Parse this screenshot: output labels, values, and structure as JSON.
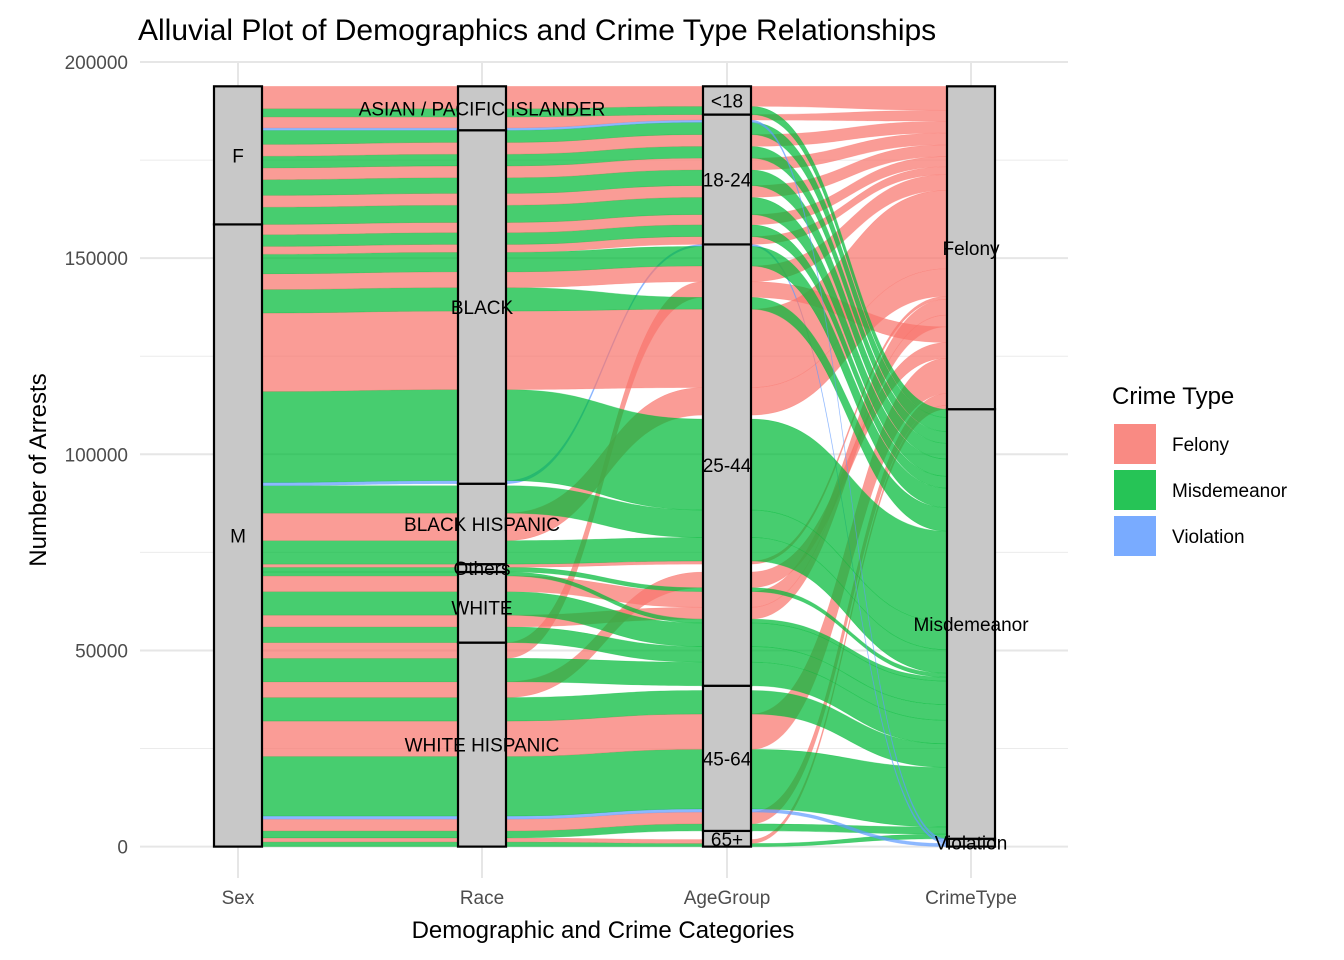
{
  "chart_data": {
    "type": "alluvial",
    "title": "Alluvial Plot of Demographics and Crime Type Relationships",
    "xlabel": "Demographic and Crime Categories",
    "ylabel": "Number of Arrests",
    "ylim": [
      -8000,
      200000
    ],
    "yticks": [
      0,
      50000,
      100000,
      150000,
      200000
    ],
    "grid": true,
    "legend_position": "right",
    "legend_title": "Crime Type",
    "axes": [
      "Sex",
      "Race",
      "AgeGroup",
      "CrimeType"
    ],
    "fill_colors": {
      "Felony": "#F8766D",
      "Misdemeanor": "#00BA38",
      "Violation": "#619CFF"
    },
    "strata": {
      "Sex": [
        {
          "label": "M",
          "from": 0,
          "to": 158600
        },
        {
          "label": "F",
          "from": 158600,
          "to": 193800
        }
      ],
      "Race": [
        {
          "label": "WHITE HISPANIC",
          "from": 0,
          "to": 52000
        },
        {
          "label": "WHITE",
          "from": 52000,
          "to": 70000
        },
        {
          "label": "Others",
          "from": 70000,
          "to": 72000
        },
        {
          "label": "BLACK HISPANIC",
          "from": 72000,
          "to": 92500
        },
        {
          "label": "BLACK",
          "from": 92500,
          "to": 182600
        },
        {
          "label": "ASIAN / PACIFIC ISLANDER",
          "from": 182600,
          "to": 193800
        }
      ],
      "AgeGroup": [
        {
          "label": "65+",
          "from": 0,
          "to": 4000
        },
        {
          "label": "45-64",
          "from": 4000,
          "to": 41000
        },
        {
          "label": "25-44",
          "from": 41000,
          "to": 153500
        },
        {
          "label": "18-24",
          "from": 153500,
          "to": 186600
        },
        {
          "label": "<18",
          "from": 186600,
          "to": 193800
        }
      ],
      "CrimeType": [
        {
          "label": "Violation",
          "from": 0,
          "to": 2000
        },
        {
          "label": "Misdemeanor",
          "from": 2000,
          "to": 111500
        },
        {
          "label": "Felony",
          "from": 111500,
          "to": 193800
        }
      ]
    },
    "flows": [
      {
        "type": "Misdemeanor",
        "values": [
          [
            0,
            1200
          ],
          [
            0,
            1200
          ],
          [
            0,
            800
          ],
          [
            2000,
            3200
          ]
        ]
      },
      {
        "type": "Felony",
        "values": [
          [
            1200,
            2200
          ],
          [
            1200,
            2200
          ],
          [
            800,
            1800
          ],
          [
            111500,
            112500
          ]
        ]
      },
      {
        "type": "Misdemeanor",
        "values": [
          [
            2200,
            4000
          ],
          [
            2200,
            4000
          ],
          [
            4000,
            5800
          ],
          [
            3200,
            5000
          ]
        ]
      },
      {
        "type": "Felony",
        "values": [
          [
            4000,
            7000
          ],
          [
            4000,
            7000
          ],
          [
            5800,
            8800
          ],
          [
            112500,
            115500
          ]
        ]
      },
      {
        "type": "Violation",
        "values": [
          [
            7000,
            7800
          ],
          [
            7000,
            7800
          ],
          [
            8800,
            9600
          ],
          [
            0,
            800
          ]
        ]
      },
      {
        "type": "Misdemeanor",
        "values": [
          [
            7800,
            23000
          ],
          [
            7800,
            23000
          ],
          [
            9600,
            24800
          ],
          [
            5000,
            20200
          ]
        ]
      },
      {
        "type": "Felony",
        "values": [
          [
            23000,
            32000
          ],
          [
            23000,
            32000
          ],
          [
            24800,
            33800
          ],
          [
            115500,
            124500
          ]
        ]
      },
      {
        "type": "Misdemeanor",
        "values": [
          [
            32000,
            38000
          ],
          [
            32000,
            38000
          ],
          [
            33800,
            39800
          ],
          [
            20200,
            26200
          ]
        ]
      },
      {
        "type": "Felony",
        "values": [
          [
            38000,
            42000
          ],
          [
            38000,
            42000
          ],
          [
            66000,
            70000
          ],
          [
            124500,
            128500
          ]
        ]
      },
      {
        "type": "Misdemeanor",
        "values": [
          [
            42000,
            48000
          ],
          [
            42000,
            48000
          ],
          [
            41000,
            47000
          ],
          [
            26200,
            32200
          ]
        ]
      },
      {
        "type": "Felony",
        "values": [
          [
            48000,
            52000
          ],
          [
            48000,
            52000
          ],
          [
            140000,
            144000
          ],
          [
            128500,
            132500
          ]
        ]
      },
      {
        "type": "Misdemeanor",
        "values": [
          [
            52000,
            56000
          ],
          [
            52000,
            56000
          ],
          [
            47000,
            51000
          ],
          [
            32200,
            36200
          ]
        ]
      },
      {
        "type": "Felony",
        "values": [
          [
            56000,
            59000
          ],
          [
            56000,
            59000
          ],
          [
            58000,
            61000
          ],
          [
            132500,
            135500
          ]
        ]
      },
      {
        "type": "Misdemeanor",
        "values": [
          [
            59000,
            65000
          ],
          [
            59000,
            65000
          ],
          [
            51000,
            57000
          ],
          [
            36200,
            42200
          ]
        ]
      },
      {
        "type": "Felony",
        "values": [
          [
            65000,
            69000
          ],
          [
            65000,
            69000
          ],
          [
            61000,
            65000
          ],
          [
            135500,
            139500
          ]
        ]
      },
      {
        "type": "Misdemeanor",
        "values": [
          [
            69000,
            70000
          ],
          [
            69000,
            70000
          ],
          [
            57000,
            58000
          ],
          [
            42200,
            43200
          ]
        ]
      },
      {
        "type": "Misdemeanor",
        "values": [
          [
            70000,
            71200
          ],
          [
            70000,
            71200
          ],
          [
            65000,
            66000
          ],
          [
            43200,
            44200
          ]
        ]
      },
      {
        "type": "Felony",
        "values": [
          [
            71200,
            72000
          ],
          [
            71200,
            72000
          ],
          [
            72000,
            72800
          ],
          [
            139500,
            140300
          ]
        ]
      },
      {
        "type": "Misdemeanor",
        "values": [
          [
            72000,
            78000
          ],
          [
            72000,
            78000
          ],
          [
            72800,
            78800
          ],
          [
            44200,
            50200
          ]
        ]
      },
      {
        "type": "Felony",
        "values": [
          [
            78000,
            85000
          ],
          [
            78000,
            85000
          ],
          [
            110000,
            117000
          ],
          [
            140300,
            147300
          ]
        ]
      },
      {
        "type": "Misdemeanor",
        "values": [
          [
            85000,
            92000
          ],
          [
            85000,
            92000
          ],
          [
            78800,
            85800
          ],
          [
            50200,
            57200
          ]
        ]
      },
      {
        "type": "Violation",
        "values": [
          [
            92000,
            92800
          ],
          [
            92500,
            93300
          ],
          [
            153000,
            153500
          ],
          [
            800,
            1400
          ]
        ]
      },
      {
        "type": "Misdemeanor",
        "values": [
          [
            92800,
            116000
          ],
          [
            93300,
            116500
          ],
          [
            85800,
            109000
          ],
          [
            57200,
            80400
          ]
        ]
      },
      {
        "type": "Felony",
        "values": [
          [
            116000,
            136000
          ],
          [
            116500,
            136500
          ],
          [
            117000,
            137000
          ],
          [
            147300,
            167300
          ]
        ]
      },
      {
        "type": "Misdemeanor",
        "values": [
          [
            136000,
            142000
          ],
          [
            136500,
            142500
          ],
          [
            137000,
            140000
          ],
          [
            80400,
            86400
          ]
        ]
      },
      {
        "type": "Felony",
        "values": [
          [
            142000,
            146000
          ],
          [
            142500,
            146500
          ],
          [
            144000,
            148000
          ],
          [
            167300,
            171300
          ]
        ]
      },
      {
        "type": "Misdemeanor",
        "values": [
          [
            146000,
            151000
          ],
          [
            146500,
            151500
          ],
          [
            148000,
            153000
          ],
          [
            86400,
            91400
          ]
        ]
      },
      {
        "type": "Felony",
        "values": [
          [
            151000,
            153000
          ],
          [
            151500,
            153500
          ],
          [
            153500,
            155500
          ],
          [
            171300,
            173300
          ]
        ]
      },
      {
        "type": "Misdemeanor",
        "values": [
          [
            153000,
            156000
          ],
          [
            153500,
            156500
          ],
          [
            155500,
            158500
          ],
          [
            91400,
            94400
          ]
        ]
      },
      {
        "type": "Felony",
        "values": [
          [
            156000,
            158600
          ],
          [
            156500,
            159100
          ],
          [
            158500,
            161100
          ],
          [
            173300,
            175900
          ]
        ]
      },
      {
        "type": "Misdemeanor",
        "values": [
          [
            158600,
            163000
          ],
          [
            159100,
            163500
          ],
          [
            161100,
            165500
          ],
          [
            94400,
            98800
          ]
        ]
      },
      {
        "type": "Felony",
        "values": [
          [
            163000,
            166000
          ],
          [
            163500,
            166500
          ],
          [
            165500,
            168500
          ],
          [
            175900,
            178900
          ]
        ]
      },
      {
        "type": "Misdemeanor",
        "values": [
          [
            166000,
            170000
          ],
          [
            166500,
            170500
          ],
          [
            168500,
            172500
          ],
          [
            98800,
            102800
          ]
        ]
      },
      {
        "type": "Felony",
        "values": [
          [
            170000,
            173000
          ],
          [
            170500,
            173500
          ],
          [
            172500,
            175500
          ],
          [
            178900,
            181900
          ]
        ]
      },
      {
        "type": "Misdemeanor",
        "values": [
          [
            173000,
            176000
          ],
          [
            173500,
            176500
          ],
          [
            175500,
            178500
          ],
          [
            102800,
            105800
          ]
        ]
      },
      {
        "type": "Felony",
        "values": [
          [
            176000,
            179000
          ],
          [
            176500,
            179500
          ],
          [
            178500,
            181500
          ],
          [
            181900,
            184900
          ]
        ]
      },
      {
        "type": "Misdemeanor",
        "values": [
          [
            179000,
            182600
          ],
          [
            179500,
            182600
          ],
          [
            181500,
            184600
          ],
          [
            105800,
            109400
          ]
        ]
      },
      {
        "type": "Violation",
        "values": [
          [
            182600,
            183200
          ],
          [
            182600,
            183200
          ],
          [
            184600,
            185200
          ],
          [
            1400,
            2000
          ]
        ]
      },
      {
        "type": "Felony",
        "values": [
          [
            183200,
            186000
          ],
          [
            183200,
            186000
          ],
          [
            185200,
            186600
          ],
          [
            184900,
            187700
          ]
        ]
      },
      {
        "type": "Misdemeanor",
        "values": [
          [
            186000,
            188100
          ],
          [
            186000,
            188100
          ],
          [
            186600,
            188700
          ],
          [
            109400,
            111500
          ]
        ]
      },
      {
        "type": "Felony",
        "values": [
          [
            188100,
            193800
          ],
          [
            188100,
            193800
          ],
          [
            188700,
            193800
          ],
          [
            187700,
            193800
          ]
        ]
      }
    ]
  }
}
